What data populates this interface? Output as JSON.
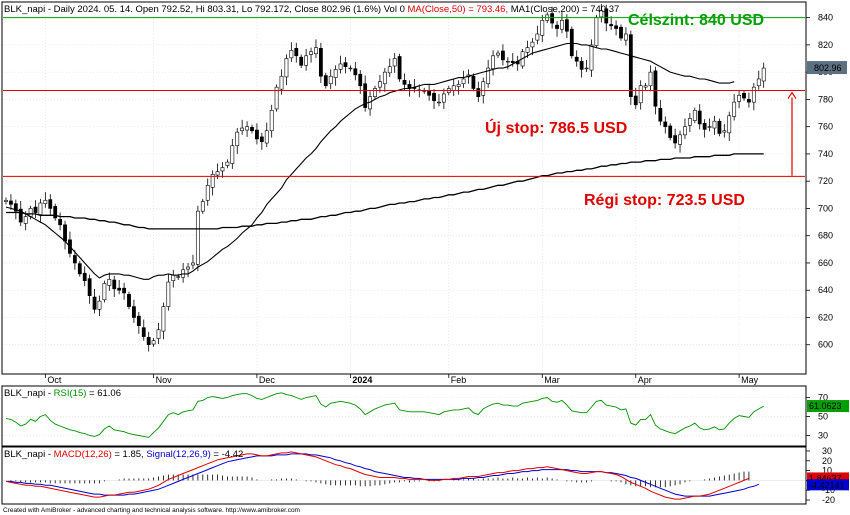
{
  "chart_data": [
    {
      "type": "candlestick",
      "header": {
        "symbol": "BLK_napi",
        "text": " - Daily 2024. 05. 14. Open 792.52, Hi 803.31, Lo 792.172, Close 802.96 (1.6%) Vol 0 ",
        "ma50_text": "MA(Close,50) = 793.46, ",
        "ma200_text": "MA1(Close,200) = 740.37"
      },
      "ylim": [
        580,
        850
      ],
      "y_ticks": [
        "600",
        "620",
        "640",
        "660",
        "680",
        "700",
        "720",
        "740",
        "760",
        "780",
        "800",
        "820",
        "840"
      ],
      "x_ticks": [
        {
          "label": "Oct",
          "index": 8
        },
        {
          "label": "Nov",
          "index": 30
        },
        {
          "label": "Dec",
          "index": 51
        },
        {
          "label": "2024",
          "index": 70
        },
        {
          "label": "Feb",
          "index": 90
        },
        {
          "label": "Mar",
          "index": 109
        },
        {
          "label": "Apr",
          "index": 128
        },
        {
          "label": "May",
          "index": 149
        }
      ],
      "last_price_label": "802.96",
      "levels": [
        {
          "name": "target",
          "value": 840,
          "color": "#00a000",
          "label": "Célszint: 840 USD",
          "label_color": "#00a000"
        },
        {
          "name": "new-stop",
          "value": 786.5,
          "color": "#e00000",
          "label": "Új stop: 786.5 USD",
          "label_color": "#e00000"
        },
        {
          "name": "old-stop",
          "value": 723.5,
          "color": "#e00000",
          "label": "Régi stop: 723.5 USD",
          "label_color": "#e00000"
        }
      ],
      "arrow": {
        "from": 724,
        "to": 785,
        "color": "#e00000"
      },
      "closes": [
        706,
        703,
        698,
        690,
        694,
        700,
        697,
        704,
        706,
        700,
        693,
        688,
        676,
        667,
        660,
        652,
        647,
        636,
        626,
        632,
        645,
        648,
        641,
        640,
        638,
        628,
        620,
        614,
        606,
        600,
        603,
        611,
        628,
        646,
        651,
        650,
        655,
        657,
        660,
        698,
        705,
        717,
        725,
        727,
        730,
        734,
        746,
        756,
        759,
        760,
        757,
        751,
        749,
        757,
        772,
        789,
        797,
        810,
        816,
        812,
        805,
        812,
        815,
        818,
        797,
        790,
        797,
        802,
        806,
        804,
        803,
        798,
        790,
        774,
        782,
        788,
        793,
        800,
        804,
        810,
        795,
        791,
        788,
        788,
        787,
        786,
        783,
        779,
        778,
        784,
        788,
        790,
        791,
        795,
        798,
        788,
        782,
        793,
        803,
        812,
        814,
        809,
        808,
        807,
        806,
        815,
        818,
        822,
        828,
        838,
        842,
        836,
        832,
        838,
        830,
        812,
        808,
        802,
        803,
        820,
        840,
        845,
        836,
        834,
        832,
        825,
        828,
        782,
        776,
        790,
        790,
        800,
        775,
        764,
        760,
        752,
        748,
        754,
        760,
        766,
        772,
        762,
        758,
        760,
        764,
        755,
        757,
        768,
        778,
        783,
        781,
        778,
        789,
        795,
        803
      ],
      "ma50": [
        701,
        700,
        699,
        698,
        696,
        694,
        692,
        690,
        688,
        685,
        682,
        679,
        676,
        672,
        668,
        664,
        660,
        656,
        652,
        649,
        651,
        652,
        652,
        652,
        651,
        651,
        650,
        649,
        648,
        648,
        650,
        651,
        651,
        652,
        651,
        651,
        652,
        652,
        654,
        657,
        659,
        661,
        664,
        667,
        670,
        672,
        675,
        678,
        682,
        685,
        688,
        693,
        697,
        703,
        707,
        711,
        715,
        721,
        725,
        729,
        733,
        737,
        740,
        744,
        749,
        753,
        757,
        760,
        764,
        767,
        770,
        773,
        775,
        777,
        778,
        780,
        782,
        783,
        785,
        786,
        787,
        788,
        788,
        789,
        790,
        791,
        791,
        791,
        792,
        793,
        794,
        795,
        796,
        796,
        797,
        798,
        799,
        800,
        801,
        802,
        803,
        803,
        804,
        806,
        808,
        810,
        812,
        814,
        815,
        816,
        817,
        818,
        819,
        820,
        821,
        821,
        821,
        820,
        820,
        819,
        818,
        817,
        817,
        816,
        815,
        814,
        813,
        812,
        811,
        810,
        809,
        808,
        806,
        804,
        802,
        800,
        799,
        798,
        797,
        797,
        796,
        795,
        795,
        794,
        793,
        792,
        792,
        792,
        793
      ],
      "ma200": [
        697,
        697,
        697,
        697,
        696,
        696,
        696,
        695,
        695,
        695,
        695,
        694,
        694,
        694,
        693,
        693,
        693,
        692,
        692,
        691,
        691,
        690,
        690,
        689,
        688,
        688,
        687,
        686,
        686,
        685,
        685,
        685,
        685,
        685,
        685,
        685,
        685,
        685,
        685,
        685,
        685,
        685,
        685,
        685,
        686,
        686,
        686,
        686,
        687,
        687,
        687,
        688,
        688,
        689,
        689,
        689,
        690,
        690,
        691,
        691,
        692,
        692,
        692,
        693,
        694,
        694,
        695,
        695,
        696,
        697,
        697,
        698,
        698,
        699,
        700,
        700,
        701,
        702,
        703,
        703,
        704,
        704,
        705,
        705,
        706,
        707,
        707,
        708,
        708,
        709,
        710,
        710,
        711,
        712,
        712,
        713,
        714,
        714,
        715,
        716,
        717,
        717,
        718,
        719,
        720,
        720,
        721,
        722,
        723,
        724,
        724,
        725,
        726,
        726,
        727,
        727,
        728,
        728,
        729,
        729,
        730,
        731,
        731,
        732,
        732,
        733,
        733,
        734,
        734,
        734,
        735,
        735,
        735,
        736,
        736,
        736,
        737,
        737,
        737,
        737,
        738,
        738,
        738,
        738,
        739,
        739,
        739,
        739,
        740,
        740,
        740,
        740,
        740,
        740,
        740
      ]
    },
    {
      "type": "line",
      "name": "rsi-panel",
      "header": {
        "symbol": "BLK_napi",
        "sep": " - ",
        "indicator": "RSI(15)",
        "value_text": " = 61.06"
      },
      "last_value_label": "61.0623",
      "y_ticks": [
        "70",
        "50",
        "30"
      ],
      "ylim": [
        20,
        80
      ],
      "values": [
        48,
        47,
        44,
        40,
        42,
        47,
        45,
        50,
        52,
        46,
        42,
        40,
        38,
        36,
        35,
        33,
        32,
        30,
        29,
        31,
        37,
        40,
        36,
        35,
        34,
        32,
        31,
        30,
        29,
        28,
        33,
        38,
        45,
        52,
        54,
        52,
        55,
        56,
        57,
        66,
        67,
        70,
        71,
        70,
        69,
        70,
        72,
        73,
        74,
        74,
        72,
        69,
        68,
        70,
        72,
        74,
        75,
        73,
        72,
        70,
        68,
        70,
        71,
        72,
        63,
        60,
        64,
        65,
        66,
        65,
        64,
        62,
        58,
        52,
        55,
        58,
        60,
        62,
        63,
        64,
        57,
        56,
        55,
        55,
        55,
        55,
        54,
        53,
        52,
        55,
        56,
        57,
        57,
        58,
        59,
        54,
        52,
        58,
        61,
        63,
        64,
        62,
        62,
        61,
        61,
        64,
        65,
        66,
        67,
        69,
        70,
        66,
        65,
        67,
        62,
        56,
        55,
        54,
        54,
        60,
        66,
        67,
        62,
        61,
        60,
        57,
        58,
        43,
        41,
        47,
        47,
        52,
        41,
        37,
        35,
        33,
        32,
        35,
        38,
        40,
        43,
        38,
        36,
        37,
        39,
        36,
        37,
        43,
        48,
        51,
        50,
        49,
        55,
        58,
        61
      ]
    },
    {
      "type": "line",
      "name": "macd-panel",
      "header": {
        "symbol": "BLK_napi",
        "sep": " - ",
        "macd_label": "MACD(12,26)",
        "macd_value_text": " = 1.85, ",
        "signal_label": "Signal(12,26,9)",
        "signal_value_text": " = -4.42"
      },
      "macd_last_label": "1.84637",
      "signal_last_label": "-4.42141",
      "y_ticks": [
        "30",
        "20",
        "10",
        "0",
        "-10",
        "-20"
      ],
      "ylim": [
        -22,
        32
      ],
      "macd": [
        -1,
        -2,
        -3,
        -4,
        -5,
        -5,
        -6,
        -6,
        -7,
        -8,
        -9,
        -10,
        -11,
        -12,
        -13,
        -14,
        -15,
        -16,
        -17,
        -17,
        -16,
        -15,
        -15,
        -14,
        -13,
        -12,
        -12,
        -11,
        -10,
        -9,
        -7,
        -5,
        -2,
        1,
        3,
        5,
        7,
        9,
        11,
        13,
        15,
        17,
        19,
        21,
        22,
        23,
        24,
        25,
        26,
        27,
        27,
        26,
        25,
        25,
        26,
        27,
        28,
        28,
        29,
        28,
        27,
        26,
        25,
        24,
        22,
        20,
        18,
        16,
        15,
        13,
        12,
        10,
        8,
        6,
        5,
        4,
        3,
        3,
        3,
        3,
        2,
        2,
        1,
        1,
        1,
        1,
        0,
        0,
        0,
        1,
        1,
        2,
        2,
        3,
        4,
        4,
        4,
        5,
        6,
        7,
        8,
        8,
        9,
        10,
        10,
        11,
        12,
        12,
        13,
        13,
        14,
        13,
        12,
        11,
        10,
        9,
        8,
        7,
        7,
        8,
        9,
        9,
        8,
        7,
        6,
        4,
        1,
        -2,
        -4,
        -6,
        -8,
        -11,
        -13,
        -15,
        -17,
        -18,
        -19,
        -19,
        -18,
        -17,
        -16,
        -16,
        -15,
        -14,
        -12,
        -10,
        -8,
        -6,
        -4,
        -2,
        0,
        2
      ],
      "signal": [
        -1,
        -1,
        -2,
        -2,
        -3,
        -3,
        -4,
        -4,
        -5,
        -5,
        -6,
        -7,
        -8,
        -9,
        -10,
        -11,
        -12,
        -13,
        -14,
        -14,
        -15,
        -15,
        -15,
        -15,
        -15,
        -14,
        -14,
        -13,
        -12,
        -11,
        -10,
        -9,
        -7,
        -5,
        -3,
        -1,
        1,
        3,
        5,
        7,
        9,
        11,
        13,
        15,
        17,
        19,
        20,
        21,
        22,
        23,
        24,
        25,
        25,
        25,
        25,
        26,
        26,
        26,
        27,
        27,
        27,
        27,
        26,
        26,
        25,
        24,
        23,
        21,
        20,
        18,
        17,
        15,
        14,
        12,
        11,
        9,
        8,
        7,
        6,
        5,
        4,
        3,
        3,
        2,
        2,
        1,
        1,
        1,
        1,
        1,
        1,
        1,
        1,
        2,
        2,
        2,
        3,
        3,
        4,
        5,
        5,
        6,
        7,
        7,
        8,
        9,
        9,
        10,
        10,
        11,
        11,
        11,
        11,
        11,
        11,
        10,
        10,
        9,
        9,
        9,
        9,
        9,
        8,
        8,
        7,
        6,
        5,
        3,
        2,
        0,
        -2,
        -4,
        -6,
        -8,
        -10,
        -12,
        -14,
        -15,
        -16,
        -16,
        -16,
        -16,
        -16,
        -16,
        -15,
        -14,
        -13,
        -12,
        -11,
        -10,
        -9,
        -7,
        -6,
        -4
      ]
    }
  ],
  "footer": {
    "text": "Created with AmiBroker - advanced charting and technical analysis software. http://www.amibroker.com"
  }
}
